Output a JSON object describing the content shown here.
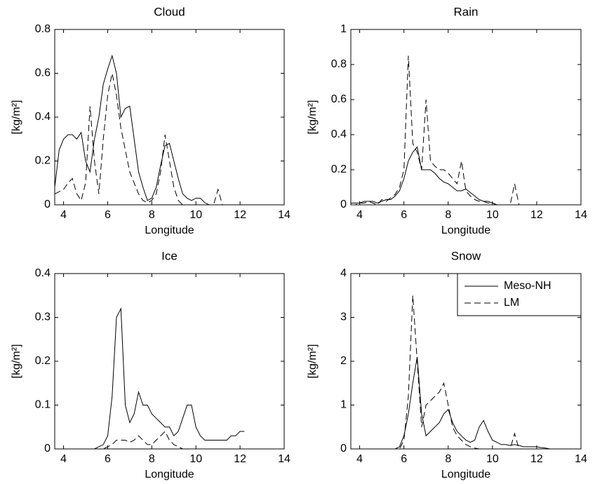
{
  "chart_data": [
    {
      "type": "line",
      "title": "Cloud",
      "xlabel": "Longitude",
      "ylabel": "[kg/m²]",
      "x": [
        3.6,
        3.8,
        4.0,
        4.2,
        4.4,
        4.6,
        4.8,
        5.0,
        5.2,
        5.4,
        5.6,
        5.8,
        6.0,
        6.2,
        6.4,
        6.6,
        6.8,
        7.0,
        7.2,
        7.4,
        7.6,
        7.8,
        8.0,
        8.2,
        8.4,
        8.6,
        8.8,
        9.0,
        9.2,
        9.4,
        9.6,
        9.8,
        10.0,
        10.2,
        10.4,
        10.6,
        10.8,
        11.0,
        11.2,
        11.4,
        11.6,
        11.8,
        12.0,
        12.2,
        12.4,
        12.6
      ],
      "xlim": [
        3.6,
        14
      ],
      "xticks": [
        4,
        6,
        8,
        10,
        12,
        14
      ],
      "ylim": [
        0,
        0.8
      ],
      "yticks": [
        0,
        0.2,
        0.4,
        0.6,
        0.8
      ],
      "series": [
        {
          "name": "Meso-NH",
          "color": "#000000",
          "linestyle": "solid",
          "values": [
            0.08,
            0.25,
            0.3,
            0.32,
            0.32,
            0.3,
            0.33,
            0.2,
            0.15,
            0.3,
            0.4,
            0.55,
            0.62,
            0.68,
            0.6,
            0.4,
            0.44,
            0.45,
            0.3,
            0.15,
            0.08,
            0.02,
            0.03,
            0.08,
            0.18,
            0.27,
            0.28,
            0.2,
            0.12,
            0.05,
            0.03,
            0.02,
            0.03,
            0.03,
            0.01,
            0,
            0,
            0,
            0,
            0,
            0,
            0,
            0,
            0,
            0,
            0
          ]
        },
        {
          "name": "LM",
          "color": "#000000",
          "linestyle": "dashed",
          "values": [
            0.05,
            0.06,
            0.07,
            0.1,
            0.12,
            0.05,
            0.02,
            0.1,
            0.45,
            0.2,
            0.05,
            0.3,
            0.5,
            0.6,
            0.5,
            0.35,
            0.25,
            0.15,
            0.1,
            0.05,
            0.02,
            0.01,
            0.02,
            0.05,
            0.15,
            0.32,
            0.2,
            0.08,
            0.02,
            0,
            0,
            0,
            0,
            0,
            0,
            0,
            0,
            0.07,
            0,
            0,
            0,
            0,
            0,
            0,
            0,
            0
          ]
        }
      ]
    },
    {
      "type": "line",
      "title": "Rain",
      "xlabel": "Longitude",
      "ylabel": "[kg/m²]",
      "x": [
        3.6,
        3.8,
        4.0,
        4.2,
        4.4,
        4.6,
        4.8,
        5.0,
        5.2,
        5.4,
        5.6,
        5.8,
        6.0,
        6.2,
        6.4,
        6.6,
        6.8,
        7.0,
        7.2,
        7.4,
        7.6,
        7.8,
        8.0,
        8.2,
        8.4,
        8.6,
        8.8,
        9.0,
        9.2,
        9.4,
        9.6,
        9.8,
        10.0,
        10.2,
        10.4,
        10.6,
        10.8,
        11.0,
        11.2,
        11.4,
        11.6,
        11.8,
        12.0,
        12.2,
        12.4,
        12.6
      ],
      "xlim": [
        3.6,
        14
      ],
      "xticks": [
        4,
        6,
        8,
        10,
        12,
        14
      ],
      "ylim": [
        0,
        1
      ],
      "yticks": [
        0,
        0.2,
        0.4,
        0.6,
        0.8,
        1
      ],
      "series": [
        {
          "name": "Meso-NH",
          "color": "#000000",
          "linestyle": "solid",
          "values": [
            0.01,
            0.01,
            0.01,
            0.02,
            0.02,
            0.02,
            0.01,
            0.02,
            0.03,
            0.03,
            0.05,
            0.08,
            0.15,
            0.25,
            0.3,
            0.33,
            0.2,
            0.2,
            0.2,
            0.18,
            0.15,
            0.13,
            0.12,
            0.1,
            0.08,
            0.08,
            0.09,
            0.07,
            0.05,
            0.03,
            0.02,
            0.02,
            0.01,
            0,
            0,
            0,
            0,
            0,
            0,
            0,
            0,
            0,
            0,
            0,
            0,
            0
          ]
        },
        {
          "name": "LM",
          "color": "#000000",
          "linestyle": "dashed",
          "values": [
            0,
            0,
            0.01,
            0.01,
            0.02,
            0.01,
            0,
            0.03,
            0.02,
            0.04,
            0.06,
            0.1,
            0.2,
            0.85,
            0.35,
            0.3,
            0.2,
            0.6,
            0.25,
            0.22,
            0.2,
            0.2,
            0.18,
            0.15,
            0.12,
            0.25,
            0.08,
            0.05,
            0.03,
            0.02,
            0.02,
            0.01,
            0.01,
            0,
            0,
            0,
            0,
            0.12,
            0,
            0,
            0,
            0,
            0,
            0,
            0,
            0
          ]
        }
      ]
    },
    {
      "type": "line",
      "title": "Ice",
      "xlabel": "Longitude",
      "ylabel": "[kg/m²]",
      "x": [
        3.6,
        3.8,
        4.0,
        4.2,
        4.4,
        4.6,
        4.8,
        5.0,
        5.2,
        5.4,
        5.6,
        5.8,
        6.0,
        6.2,
        6.4,
        6.6,
        6.8,
        7.0,
        7.2,
        7.4,
        7.6,
        7.8,
        8.0,
        8.2,
        8.4,
        8.6,
        8.8,
        9.0,
        9.2,
        9.4,
        9.6,
        9.8,
        10.0,
        10.2,
        10.4,
        10.6,
        10.8,
        11.0,
        11.2,
        11.4,
        11.6,
        11.8,
        12.0,
        12.2,
        12.4,
        12.6
      ],
      "xlim": [
        3.6,
        14
      ],
      "xticks": [
        4,
        6,
        8,
        10,
        12,
        14
      ],
      "ylim": [
        0,
        0.4
      ],
      "yticks": [
        0,
        0.1,
        0.2,
        0.3,
        0.4
      ],
      "series": [
        {
          "name": "Meso-NH",
          "color": "#000000",
          "linestyle": "solid",
          "values": [
            null,
            null,
            null,
            null,
            null,
            null,
            null,
            0,
            0,
            0,
            0.005,
            0.01,
            0.03,
            0.12,
            0.3,
            0.32,
            0.1,
            0.06,
            0.08,
            0.13,
            0.1,
            0.1,
            0.08,
            0.07,
            0.06,
            0.05,
            0.05,
            0.03,
            0.04,
            0.07,
            0.1,
            0.1,
            0.05,
            0.03,
            0.02,
            0.02,
            0.02,
            0.02,
            0.02,
            0.02,
            0.03,
            0.03,
            0.04,
            0.04,
            null,
            null
          ]
        },
        {
          "name": "LM",
          "color": "#000000",
          "linestyle": "dashed",
          "values": [
            null,
            null,
            null,
            null,
            null,
            null,
            null,
            null,
            null,
            0,
            0,
            0,
            0.005,
            0.01,
            0.02,
            0.02,
            0.02,
            0.015,
            0.02,
            0.03,
            0.02,
            0.01,
            0.01,
            0.02,
            0.03,
            0.04,
            0.02,
            0.01,
            0.005,
            0,
            0,
            0,
            0,
            0,
            0,
            null,
            null,
            null,
            null,
            null,
            null,
            null,
            null,
            null,
            null,
            null
          ]
        }
      ]
    },
    {
      "type": "line",
      "title": "Snow",
      "xlabel": "Longitude",
      "ylabel": "[kg/m²]",
      "legend": "upper right",
      "x": [
        3.6,
        3.8,
        4.0,
        4.2,
        4.4,
        4.6,
        4.8,
        5.0,
        5.2,
        5.4,
        5.6,
        5.8,
        6.0,
        6.2,
        6.4,
        6.6,
        6.8,
        7.0,
        7.2,
        7.4,
        7.6,
        7.8,
        8.0,
        8.2,
        8.4,
        8.6,
        8.8,
        9.0,
        9.2,
        9.4,
        9.6,
        9.8,
        10.0,
        10.2,
        10.4,
        10.6,
        10.8,
        11.0,
        11.2,
        11.4,
        11.6,
        11.8,
        12.0,
        12.2,
        12.4,
        12.6
      ],
      "xlim": [
        3.6,
        14
      ],
      "xticks": [
        4,
        6,
        8,
        10,
        12,
        14
      ],
      "ylim": [
        0,
        4
      ],
      "yticks": [
        0,
        1,
        2,
        3,
        4
      ],
      "series": [
        {
          "name": "Meso-NH",
          "color": "#000000",
          "linestyle": "solid",
          "values": [
            null,
            null,
            null,
            null,
            null,
            null,
            null,
            null,
            null,
            0,
            0,
            0.05,
            0.3,
            0.8,
            1.5,
            2.1,
            0.8,
            0.3,
            0.4,
            0.5,
            0.6,
            0.8,
            0.9,
            0.6,
            0.4,
            0.3,
            0.2,
            0.15,
            0.2,
            0.5,
            0.65,
            0.4,
            0.2,
            0.15,
            0.1,
            0.1,
            0.08,
            0.1,
            0.08,
            0.05,
            0.05,
            0.05,
            0.05,
            0.03,
            0.02,
            0
          ]
        },
        {
          "name": "LM",
          "color": "#000000",
          "linestyle": "dashed",
          "values": [
            null,
            null,
            null,
            null,
            null,
            null,
            null,
            null,
            null,
            0,
            0,
            0,
            0.2,
            1.2,
            3.5,
            2.0,
            0.5,
            1.0,
            1.1,
            1.2,
            1.3,
            1.5,
            1.0,
            0.5,
            0.3,
            0.2,
            0.1,
            0.05,
            0.02,
            0,
            0,
            0,
            0,
            0,
            0,
            0,
            0,
            0.35,
            0,
            0,
            0,
            0,
            0,
            null,
            null,
            null
          ]
        }
      ]
    }
  ]
}
